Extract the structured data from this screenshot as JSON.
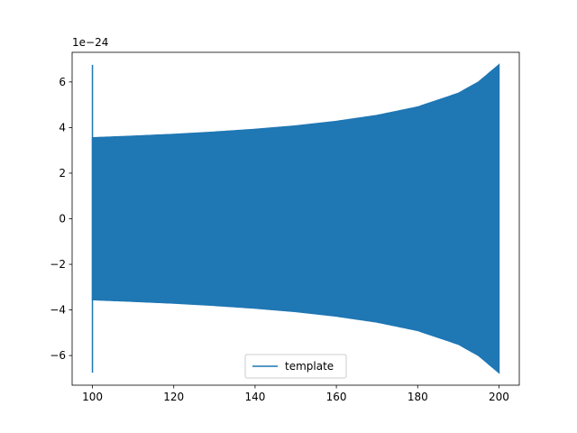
{
  "chart_data": {
    "type": "line",
    "offset_label": "1e−24",
    "x_range": [
      95,
      205
    ],
    "y_range": [
      -7.3,
      7.3
    ],
    "x_ticks": [
      100,
      120,
      140,
      160,
      180,
      200
    ],
    "x_tick_labels": [
      "100",
      "120",
      "140",
      "160",
      "180",
      "200"
    ],
    "y_ticks": [
      -6,
      -4,
      -2,
      0,
      2,
      4,
      6
    ],
    "y_tick_labels": [
      "−6",
      "−4",
      "−2",
      "0",
      "2",
      "4",
      "6"
    ],
    "legend": {
      "placement": "lower center",
      "entries": [
        "template"
      ]
    },
    "series": [
      {
        "name": "template",
        "color": "#1f77b4",
        "style": "oscillating chirp (filled envelope)",
        "x_start": 100,
        "x_end": 200,
        "spike_x": 100,
        "spike_peak": 6.75,
        "envelope": [
          {
            "x": 100,
            "y": 3.55
          },
          {
            "x": 110,
            "y": 3.62
          },
          {
            "x": 120,
            "y": 3.7
          },
          {
            "x": 130,
            "y": 3.8
          },
          {
            "x": 140,
            "y": 3.92
          },
          {
            "x": 150,
            "y": 4.07
          },
          {
            "x": 160,
            "y": 4.27
          },
          {
            "x": 170,
            "y": 4.53
          },
          {
            "x": 180,
            "y": 4.9
          },
          {
            "x": 190,
            "y": 5.5
          },
          {
            "x": 195,
            "y": 6.0
          },
          {
            "x": 200,
            "y": 6.75
          }
        ]
      }
    ]
  }
}
